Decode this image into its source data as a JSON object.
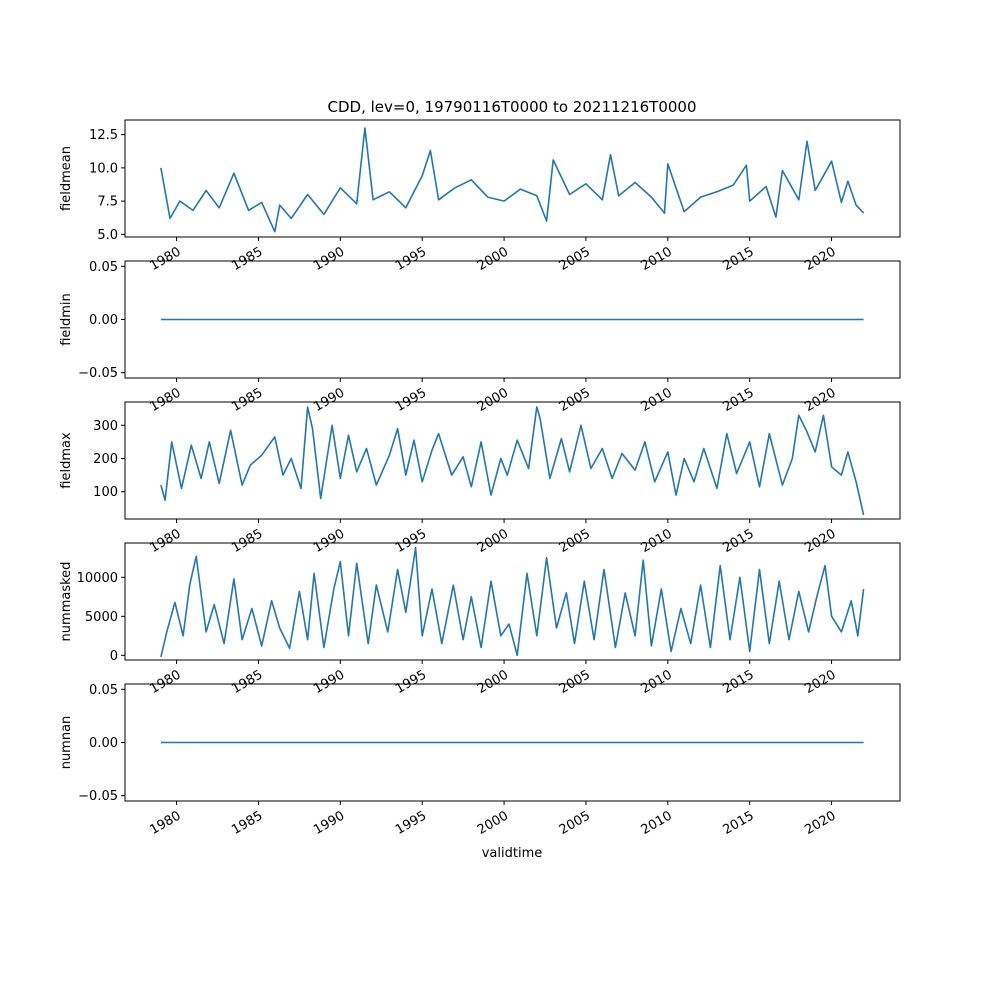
{
  "title": "CDD, lev=0, 19790116T0000 to 20211216T0000",
  "line_color": "#1f77b4",
  "chart_data": {
    "type": "line",
    "title": "CDD, lev=0, 19790116T0000 to 20211216T0000",
    "xlabel": "validtime",
    "x_range": [
      "1979-01-16",
      "2021-12-16"
    ],
    "x_ticks": [
      "1980",
      "1985",
      "1990",
      "1995",
      "2000",
      "2005",
      "2010",
      "2015",
      "2020"
    ],
    "x_tick_years": [
      1980,
      1985,
      1990,
      1995,
      2000,
      2005,
      2010,
      2015,
      2020
    ],
    "x_lim_years": [
      1976.85,
      2024.18
    ],
    "grid": false,
    "legend": "none",
    "panels": [
      {
        "name": "fieldmean",
        "ylabel": "fieldmean",
        "ylim": [
          4.8,
          13.6
        ],
        "y_ticks": [
          "5.0",
          "7.5",
          "10.0",
          "12.5"
        ],
        "y_tick_values": [
          5.0,
          7.5,
          10.0,
          12.5
        ],
        "series": [
          {
            "x_years": [
              1979.04,
              1979.6,
              1980.2,
              1981.0,
              1981.8,
              1982.6,
              1983.5,
              1984.4,
              1985.2,
              1986.0,
              1986.3,
              1987.0,
              1988.0,
              1989.0,
              1990.0,
              1991.0,
              1991.5,
              1992.0,
              1993.0,
              1994.0,
              1995.0,
              1995.5,
              1996.0,
              1997.0,
              1998.0,
              1999.0,
              2000.0,
              2001.0,
              2002.0,
              2002.6,
              2003.0,
              2004.0,
              2005.0,
              2006.0,
              2006.5,
              2007.0,
              2008.0,
              2009.0,
              2009.8,
              2010.0,
              2011.0,
              2012.0,
              2013.0,
              2014.0,
              2014.8,
              2015.0,
              2016.0,
              2016.6,
              2017.0,
              2018.0,
              2018.5,
              2019.0,
              2020.0,
              2020.6,
              2021.0,
              2021.5,
              2021.96
            ],
            "y": [
              10.0,
              6.2,
              7.5,
              6.8,
              8.3,
              7.0,
              9.6,
              6.8,
              7.4,
              5.2,
              7.2,
              6.2,
              8.0,
              6.5,
              8.5,
              7.3,
              13.0,
              7.6,
              8.2,
              7.0,
              9.4,
              11.3,
              7.6,
              8.5,
              9.1,
              7.8,
              7.5,
              8.4,
              7.9,
              6.0,
              10.6,
              8.0,
              8.8,
              7.6,
              11.0,
              7.9,
              8.9,
              7.8,
              6.6,
              10.3,
              6.7,
              7.8,
              8.2,
              8.7,
              10.2,
              7.5,
              8.6,
              6.3,
              9.8,
              7.6,
              12.0,
              8.3,
              10.5,
              7.4,
              9.0,
              7.2,
              6.6
            ]
          }
        ]
      },
      {
        "name": "fieldmin",
        "ylabel": "fieldmin",
        "ylim": [
          -0.055,
          0.055
        ],
        "y_ticks": [
          "−0.05",
          "0.00",
          "0.05"
        ],
        "y_tick_values": [
          -0.05,
          0.0,
          0.05
        ],
        "series": [
          {
            "x_years": [
              1979.04,
              2021.96
            ],
            "y": [
              0.0,
              0.0
            ]
          }
        ]
      },
      {
        "name": "fieldmax",
        "ylabel": "fieldmax",
        "ylim": [
          18,
          370
        ],
        "y_ticks": [
          "100",
          "200",
          "300"
        ],
        "y_tick_values": [
          100,
          200,
          300
        ],
        "series": [
          {
            "x_years": [
              1979.04,
              1979.3,
              1979.7,
              1980.3,
              1980.9,
              1981.5,
              1982.0,
              1982.6,
              1983.3,
              1984.0,
              1984.5,
              1985.2,
              1986.0,
              1986.5,
              1987.0,
              1987.6,
              1988.0,
              1988.3,
              1988.8,
              1989.5,
              1990.0,
              1990.5,
              1991.0,
              1991.6,
              1992.2,
              1993.0,
              1993.5,
              1994.0,
              1994.5,
              1995.0,
              1995.6,
              1996.0,
              1996.8,
              1997.5,
              1998.0,
              1998.6,
              1999.2,
              1999.8,
              2000.2,
              2000.8,
              2001.5,
              2002.0,
              2002.2,
              2002.8,
              2003.5,
              2004.0,
              2004.7,
              2005.3,
              2006.0,
              2006.6,
              2007.2,
              2008.0,
              2008.6,
              2009.2,
              2010.0,
              2010.5,
              2011.0,
              2011.6,
              2012.2,
              2013.0,
              2013.6,
              2014.2,
              2015.0,
              2015.6,
              2016.2,
              2017.0,
              2017.6,
              2018.0,
              2018.5,
              2019.0,
              2019.5,
              2020.0,
              2020.6,
              2021.0,
              2021.5,
              2021.96
            ],
            "y": [
              120,
              75,
              250,
              110,
              240,
              140,
              250,
              125,
              285,
              120,
              180,
              210,
              265,
              150,
              200,
              110,
              355,
              290,
              80,
              300,
              140,
              270,
              160,
              230,
              120,
              210,
              290,
              150,
              255,
              130,
              225,
              275,
              150,
              205,
              115,
              250,
              90,
              200,
              150,
              255,
              170,
              355,
              320,
              140,
              260,
              160,
              300,
              170,
              230,
              140,
              215,
              165,
              250,
              130,
              220,
              90,
              200,
              130,
              230,
              110,
              275,
              155,
              250,
              115,
              275,
              120,
              200,
              330,
              280,
              220,
              330,
              175,
              150,
              220,
              130,
              30
            ]
          }
        ]
      },
      {
        "name": "nummasked",
        "ylabel": "nummasked",
        "ylim": [
          -600,
          14400
        ],
        "y_ticks": [
          "0",
          "5000",
          "10000"
        ],
        "y_tick_values": [
          0,
          5000,
          10000
        ],
        "series": [
          {
            "x_years": [
              1979.04,
              1979.4,
              1979.9,
              1980.4,
              1980.8,
              1981.2,
              1981.8,
              1982.3,
              1982.9,
              1983.5,
              1984.0,
              1984.6,
              1985.2,
              1985.8,
              1986.3,
              1986.9,
              1987.5,
              1988.0,
              1988.4,
              1989.0,
              1989.6,
              1990.0,
              1990.5,
              1991.0,
              1991.7,
              1992.2,
              1992.9,
              1993.5,
              1994.0,
              1994.6,
              1995.0,
              1995.6,
              1996.2,
              1996.9,
              1997.5,
              1998.0,
              1998.6,
              1999.2,
              1999.8,
              2000.3,
              2000.8,
              2001.4,
              2002.0,
              2002.6,
              2003.2,
              2003.8,
              2004.3,
              2004.9,
              2005.5,
              2006.1,
              2006.8,
              2007.4,
              2008.0,
              2008.5,
              2009.0,
              2009.6,
              2010.2,
              2010.8,
              2011.4,
              2012.0,
              2012.6,
              2013.2,
              2013.8,
              2014.4,
              2015.0,
              2015.6,
              2016.2,
              2016.8,
              2017.4,
              2018.0,
              2018.6,
              2019.1,
              2019.6,
              2020.0,
              2020.6,
              2021.2,
              2021.6,
              2021.96
            ],
            "y": [
              -200,
              3000,
              6800,
              2500,
              9000,
              12700,
              3000,
              6500,
              1500,
              9800,
              2000,
              6000,
              1200,
              7000,
              3500,
              900,
              8200,
              2000,
              10500,
              1000,
              8500,
              12000,
              2500,
              11800,
              1500,
              9000,
              3000,
              11000,
              5500,
              13800,
              2500,
              8500,
              1500,
              9000,
              2000,
              7500,
              1000,
              9500,
              2500,
              4000,
              0,
              10500,
              2500,
              12500,
              3500,
              8000,
              1500,
              9500,
              2000,
              11000,
              1000,
              8000,
              2500,
              12200,
              1200,
              8500,
              500,
              6000,
              1500,
              9000,
              1000,
              11500,
              2000,
              10000,
              500,
              11000,
              1500,
              9500,
              2000,
              8200,
              3000,
              7500,
              11500,
              5000,
              3000,
              7000,
              2500,
              8500
            ]
          }
        ]
      },
      {
        "name": "numnan",
        "ylabel": "numnan",
        "ylim": [
          -0.055,
          0.055
        ],
        "y_ticks": [
          "−0.05",
          "0.00",
          "0.05"
        ],
        "y_tick_values": [
          -0.05,
          0.0,
          0.05
        ],
        "series": [
          {
            "x_years": [
              1979.04,
              2021.96
            ],
            "y": [
              0.0,
              0.0
            ]
          }
        ]
      }
    ]
  }
}
